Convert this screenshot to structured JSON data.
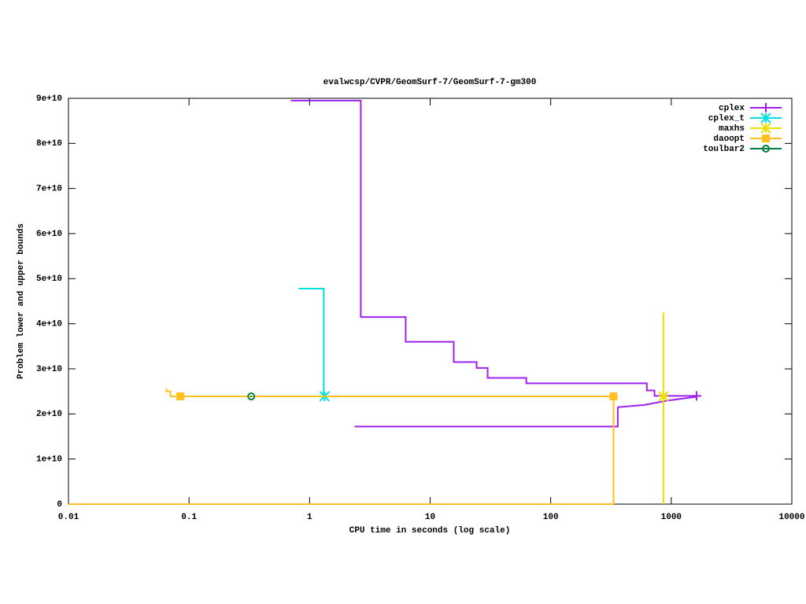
{
  "chart_data": {
    "type": "line",
    "title": "evalwcsp/CVPR/GeomSurf-7/GeomSurf-7-gm300",
    "xlabel": "CPU time in seconds (log scale)",
    "ylabel": "Problem lower and upper bounds",
    "xlog": true,
    "xlim": [
      0.01,
      10000
    ],
    "xticks": [
      0.01,
      0.1,
      1,
      10,
      100,
      1000,
      10000
    ],
    "ylim": [
      0,
      90000000000
    ],
    "yticks": [
      0,
      {
        "value": 10000000000,
        "label": "1e+10"
      },
      {
        "value": 20000000000,
        "label": "2e+10"
      },
      {
        "value": 30000000000,
        "label": "3e+10"
      },
      {
        "value": 40000000000,
        "label": "4e+10"
      },
      {
        "value": 50000000000,
        "label": "5e+10"
      },
      {
        "value": 60000000000,
        "label": "6e+10"
      },
      {
        "value": 70000000000,
        "label": "7e+10"
      },
      {
        "value": 80000000000,
        "label": "8e+10"
      },
      {
        "value": 90000000000,
        "label": "9e+10"
      }
    ],
    "legend": "top-right",
    "series": [
      {
        "name": "cplex",
        "color": "#a020f0",
        "marker": "plus",
        "x": [
          0.7,
          2.66,
          2.66,
          6.27,
          6.27,
          15.7,
          15.7,
          24.3,
          24.3,
          30,
          30,
          62.7,
          62.7,
          627,
          627,
          726,
          726,
          1620,
          null,
          2.36,
          360,
          360,
          600,
          950,
          1620
        ],
        "values": [
          89500000000,
          89500000000,
          41500000000,
          41500000000,
          36000000000,
          36000000000,
          31500000000,
          31500000000,
          30200000000,
          30200000000,
          28000000000,
          28000000000,
          26800000000,
          26800000000,
          25200000000,
          25200000000,
          24000000000,
          24000000000,
          null,
          17200000000,
          17200000000,
          21500000000,
          22000000000,
          23000000000,
          23800000000
        ],
        "marker_x": [
          1620
        ],
        "marker_values": [
          24000000000
        ]
      },
      {
        "name": "cplex_t",
        "color": "#00e0e0",
        "marker": "star",
        "x": [
          0.81,
          1.31,
          1.31
        ],
        "values": [
          47800000000,
          47800000000,
          23900000000
        ],
        "marker_x": [
          1.33
        ],
        "marker_values": [
          23900000000
        ]
      },
      {
        "name": "maxhs",
        "color": "#e8e000",
        "marker": "star",
        "x": [
          861,
          861
        ],
        "values": [
          42500000000,
          0
        ],
        "marker_x": [
          861
        ],
        "marker_values": [
          23900000000
        ]
      },
      {
        "name": "daoopt",
        "color": "#ffc020",
        "marker": "square",
        "x": [
          0.065,
          0.065,
          0.07,
          0.07,
          332,
          332,
          null,
          0.01,
          332
        ],
        "values": [
          25700000000,
          25000000000,
          25000000000,
          23900000000,
          23900000000,
          0,
          null,
          0,
          0
        ],
        "marker_x": [
          0.0847,
          332
        ],
        "marker_values": [
          23900000000,
          23900000000
        ]
      },
      {
        "name": "toulbar2",
        "color": "#008040",
        "marker": "circle",
        "x": [],
        "values": [],
        "marker_x": [
          0.328
        ],
        "marker_values": [
          23900000000
        ]
      }
    ]
  }
}
